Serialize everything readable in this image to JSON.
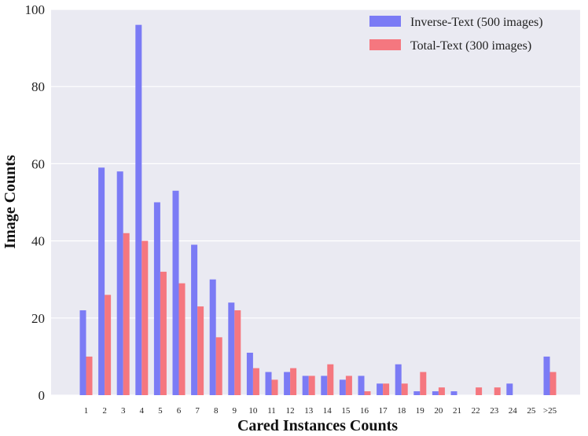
{
  "chart_data": {
    "type": "bar",
    "title": "",
    "xlabel": "Cared Instances Counts",
    "ylabel": "Image Counts",
    "ylim": [
      0,
      100
    ],
    "yticks": [
      0,
      20,
      40,
      60,
      80,
      100
    ],
    "grid": true,
    "legend_position": "top-right",
    "categories": [
      "1",
      "2",
      "3",
      "4",
      "5",
      "6",
      "7",
      "8",
      "9",
      "10",
      "11",
      "12",
      "13",
      "14",
      "15",
      "16",
      "17",
      "18",
      "19",
      "20",
      "21",
      "22",
      "23",
      "24",
      "25",
      ">25"
    ],
    "series": [
      {
        "name": "Inverse-Text (500 images)",
        "color": "#7b7bf5",
        "values": [
          22,
          59,
          58,
          96,
          50,
          53,
          39,
          30,
          24,
          11,
          6,
          6,
          5,
          5,
          4,
          5,
          3,
          8,
          1,
          1,
          1,
          0,
          0,
          3,
          0,
          10
        ]
      },
      {
        "name": "Total-Text (300 images)",
        "color": "#f5777f",
        "values": [
          10,
          26,
          42,
          40,
          32,
          29,
          23,
          15,
          22,
          7,
          4,
          7,
          5,
          8,
          5,
          1,
          3,
          3,
          6,
          2,
          0,
          2,
          2,
          0,
          0,
          6
        ]
      }
    ],
    "colors": {
      "plot_background": "#eaeaf2",
      "grid": "#ffffff"
    }
  }
}
